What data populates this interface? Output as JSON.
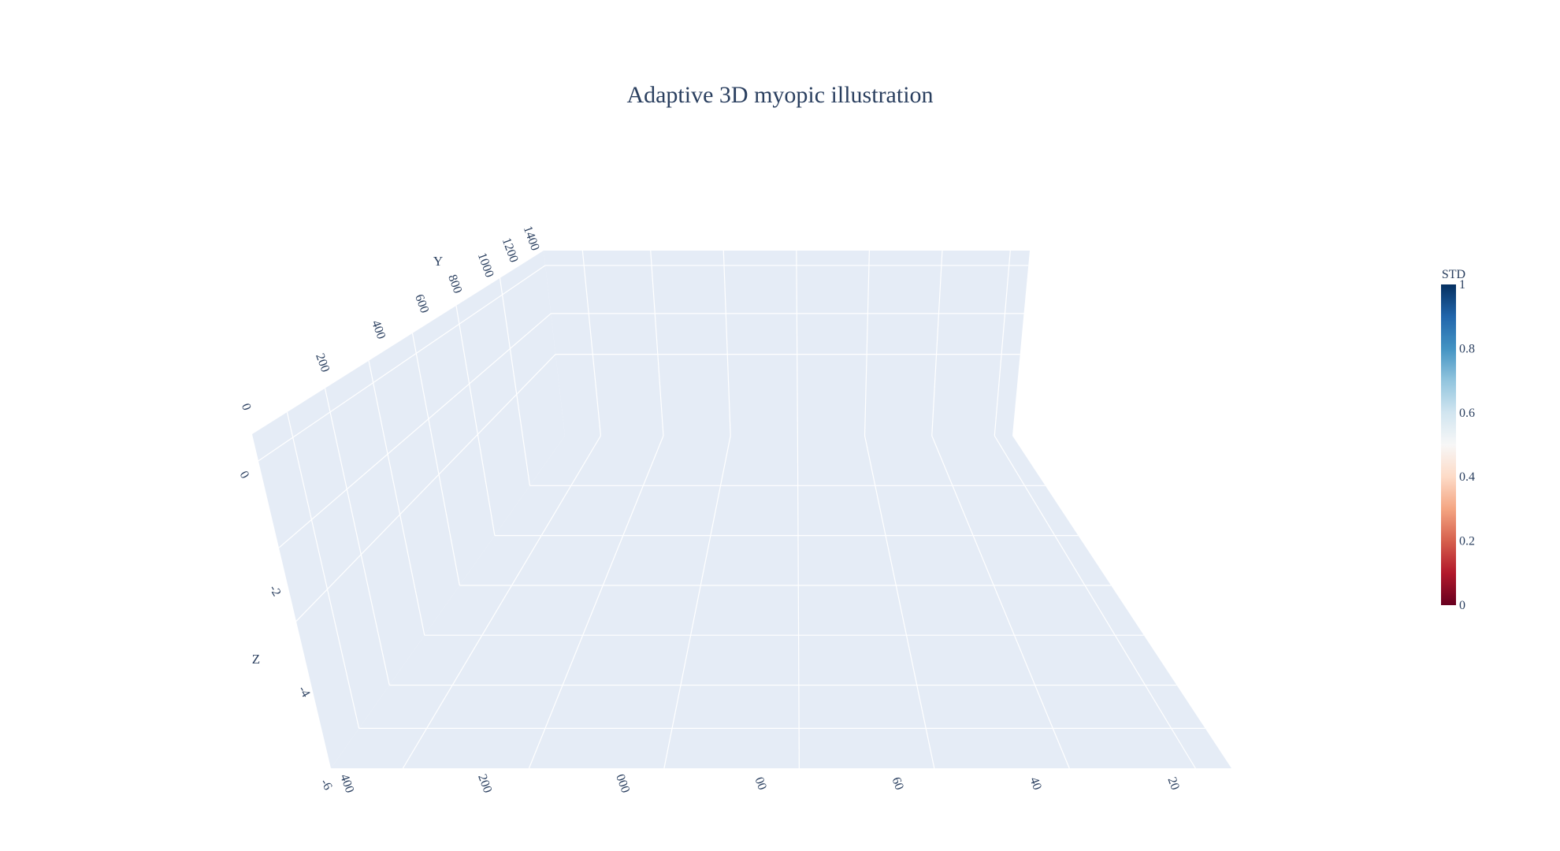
{
  "chart_data": {
    "type": "surface",
    "title": "Adaptive 3D myopic illustration",
    "colors": {
      "pane": "#e5ecf6",
      "grid": "#ffffff",
      "text": "#2a3f5f"
    },
    "x_axis": {
      "title": "",
      "tick_labels": [
        "400",
        "200",
        "000",
        "00",
        "60",
        "40",
        "20"
      ]
    },
    "y_axis": {
      "title": "Y",
      "tick_labels": [
        "0",
        "200",
        "400",
        "600",
        "800",
        "1000",
        "1200",
        "1400"
      ]
    },
    "z_axis": {
      "title": "Z",
      "tick_labels": [
        "0",
        "-2",
        "-4",
        "-6"
      ]
    },
    "colorbar": {
      "title": "STD",
      "colorscale": "RdBu",
      "range": [
        0,
        1
      ],
      "tick_labels": [
        "0",
        "0.2",
        "0.4",
        "0.6",
        "0.8",
        "1"
      ],
      "stops": [
        "#67001f",
        "#b2182b",
        "#d6604d",
        "#f4a582",
        "#fddbc7",
        "#f7f7f7",
        "#d1e5f0",
        "#92c5de",
        "#4393c3",
        "#2166ac",
        "#053061"
      ]
    },
    "series": []
  }
}
